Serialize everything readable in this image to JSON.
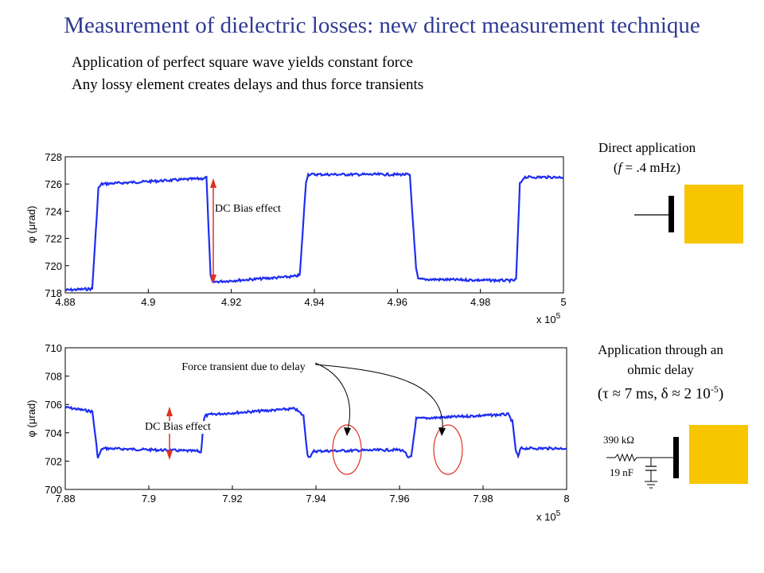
{
  "slide": {
    "title": "Measurement  of dielectric losses: new direct measurement  technique",
    "subtitle_1": "Application of perfect square wave yields constant force",
    "subtitle_2": "Any lossy element creates delays and thus force transients"
  },
  "right_panel": {
    "direct_title": "Direct application",
    "direct_freq_prefix": "(",
    "direct_freq_var": "f",
    "direct_freq_rest": " = .4 mHz)",
    "ohmic_line1": "Application through an",
    "ohmic_line2": "ohmic delay",
    "ohmic_params": "(τ ≈ 7 ms, δ ≈ 2 10",
    "ohmic_exp": "-5",
    "ohmic_close": ")",
    "resistor_label": "390 kΩ",
    "capacitor_label": "19 nF"
  },
  "colors": {
    "title": "#2f3a93",
    "trace": "#1f2ef0",
    "arrow": "#e03020",
    "electrode": "#f7c600"
  },
  "chart_data": [
    {
      "type": "line",
      "xlabel_multiplier": "x 10",
      "xlabel_exp": "5",
      "ylabel": "φ (μrad)",
      "xlim": [
        4.88,
        5.0
      ],
      "ylim": [
        718,
        728
      ],
      "xticks": [
        4.88,
        4.9,
        4.92,
        4.94,
        4.96,
        4.98,
        5
      ],
      "xtick_labels": [
        "4.88",
        "4.9",
        "4.92",
        "4.94",
        "4.96",
        "4.98",
        "5"
      ],
      "yticks": [
        718,
        720,
        722,
        724,
        726,
        728
      ],
      "ytick_labels": [
        "718",
        "720",
        "722",
        "724",
        "726",
        "728"
      ],
      "grid": false,
      "series": [
        {
          "x": [
            4.88,
            4.8865,
            4.888,
            4.8888,
            4.913,
            4.914,
            4.915,
            4.9155,
            4.935,
            4.9365,
            4.938,
            4.9385,
            4.9625,
            4.963,
            4.9645,
            4.965,
            4.988,
            4.9886,
            4.9895,
            4.9905,
            5.0
          ],
          "y": [
            718.2,
            718.3,
            725.7,
            726.0,
            726.4,
            726.5,
            719.2,
            718.8,
            719.2,
            719.3,
            726.2,
            726.7,
            726.7,
            726.6,
            719.8,
            719.0,
            718.9,
            719.0,
            726.0,
            726.5,
            726.5
          ]
        }
      ],
      "annotations": [
        {
          "text": "DC Bias effect"
        }
      ]
    },
    {
      "type": "line",
      "xlabel_multiplier": "x 10",
      "xlabel_exp": "5",
      "ylabel": "φ (μrad)",
      "xlim": [
        7.88,
        8.0
      ],
      "ylim": [
        700,
        710
      ],
      "xticks": [
        7.88,
        7.9,
        7.92,
        7.94,
        7.96,
        7.98,
        8
      ],
      "xtick_labels": [
        "7.88",
        "7.9",
        "7.92",
        "7.94",
        "7.96",
        "7.98",
        "8"
      ],
      "yticks": [
        700,
        702,
        704,
        706,
        708,
        710
      ],
      "ytick_labels": [
        "700",
        "702",
        "704",
        "706",
        "708",
        "710"
      ],
      "grid": false,
      "series": [
        {
          "x": [
            7.88,
            7.8865,
            7.8875,
            7.8878,
            7.8885,
            7.889,
            7.9118,
            7.9125,
            7.9131,
            7.9135,
            7.915,
            7.935,
            7.937,
            7.938,
            7.9387,
            7.9395,
            7.96,
            7.9612,
            7.962,
            7.9628,
            7.964,
            7.986,
            7.987,
            7.9878,
            7.9884,
            7.989,
            8.0
          ],
          "y": [
            705.8,
            705.5,
            703.0,
            702.2,
            702.7,
            702.9,
            702.7,
            702.6,
            704.8,
            705.2,
            705.3,
            705.7,
            705.2,
            702.4,
            702.3,
            702.7,
            702.8,
            702.7,
            702.2,
            702.3,
            705.0,
            705.3,
            704.8,
            702.8,
            702.3,
            702.9,
            702.9
          ]
        }
      ],
      "annotations": [
        {
          "text": "DC Bias effect"
        },
        {
          "text": "Force transient due to delay"
        }
      ]
    }
  ]
}
